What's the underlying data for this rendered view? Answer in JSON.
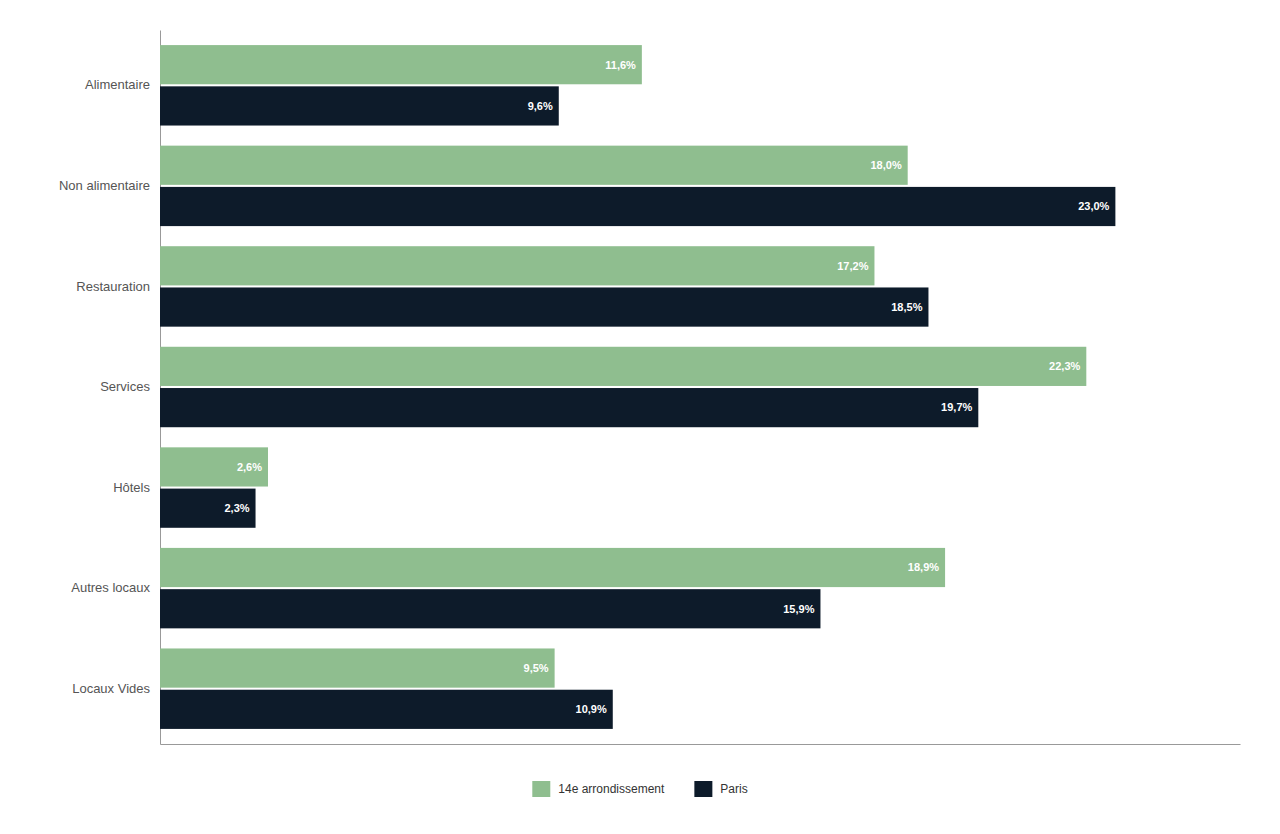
{
  "chart_data": {
    "type": "bar",
    "orientation": "horizontal",
    "categories": [
      "Alimentaire",
      "Non alimentaire",
      "Restauration",
      "Services",
      "Hôtels",
      "Autres locaux",
      "Locaux Vides"
    ],
    "series": [
      {
        "name": "14e arrondissement",
        "color": "#8fbe8f",
        "values": [
          11.6,
          18.0,
          17.2,
          22.3,
          2.6,
          18.9,
          9.5
        ],
        "value_labels": [
          "11,6%",
          "18,0%",
          "17,2%",
          "22,3%",
          "2,6%",
          "18,9%",
          "9,5%"
        ]
      },
      {
        "name": "Paris",
        "color": "#0d1b2a",
        "values": [
          9.6,
          23.0,
          18.5,
          19.7,
          2.3,
          15.9,
          10.9
        ],
        "value_labels": [
          "9,6%",
          "23,0%",
          "18,5%",
          "19,7%",
          "2,3%",
          "15,9%",
          "10,9%"
        ]
      }
    ],
    "xlim": [
      0,
      26
    ],
    "data_labels": true,
    "legend": "bottom",
    "grid": false,
    "tick_labels": "y"
  }
}
